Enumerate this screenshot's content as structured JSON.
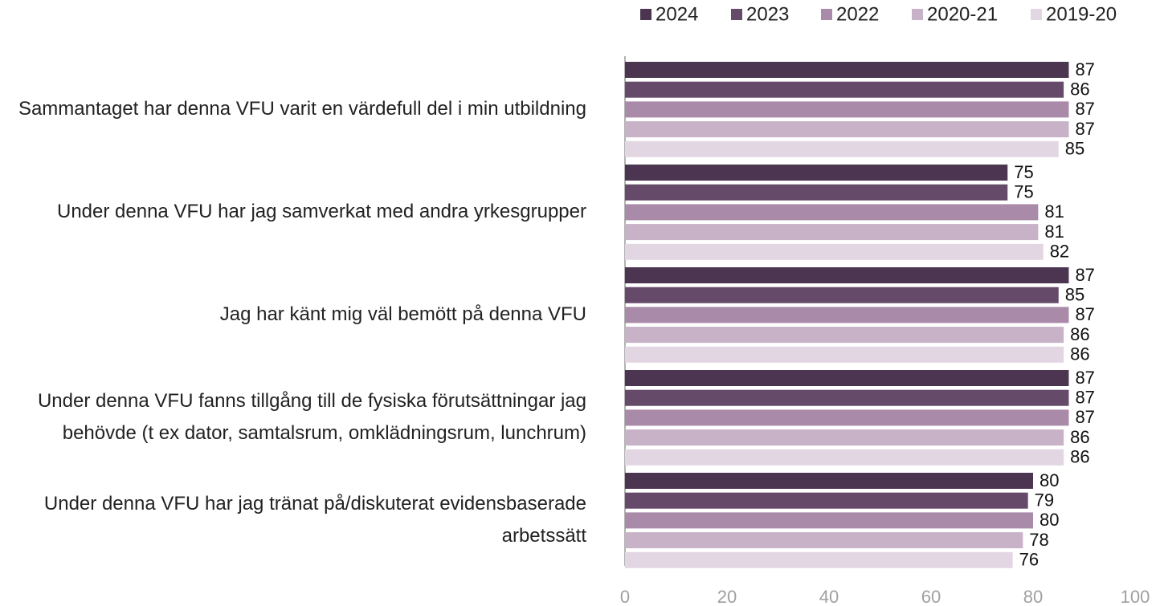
{
  "chart_data": {
    "type": "hbar",
    "categories": [
      "Sammantaget har denna VFU varit en värdefull del i min utbildning",
      "Under denna VFU har jag samverkat med andra yrkesgrupper",
      "Jag har känt mig väl bemött på denna VFU",
      "Under denna VFU fanns tillgång till de fysiska förutsättningar jag behövde (t ex dator, samtalsrum, omklädningsrum, lunchrum)",
      "Under denna VFU har jag tränat på/diskuterat evidensbaserade arbetssätt"
    ],
    "series": [
      {
        "name": "2024",
        "color": "#4b3550",
        "values": [
          87,
          75,
          87,
          87,
          80
        ]
      },
      {
        "name": "2023",
        "color": "#654a6a",
        "values": [
          86,
          75,
          85,
          87,
          79
        ]
      },
      {
        "name": "2022",
        "color": "#a98aa8",
        "values": [
          87,
          81,
          87,
          87,
          80
        ]
      },
      {
        "name": "2020-21",
        "color": "#c7b2c8",
        "values": [
          87,
          81,
          86,
          86,
          78
        ]
      },
      {
        "name": "2019-20",
        "color": "#e3d6e3",
        "values": [
          85,
          82,
          86,
          86,
          76
        ]
      }
    ],
    "xlim": [
      0,
      100
    ],
    "xticks": [
      0,
      20,
      40,
      60,
      80,
      100
    ],
    "grid": false,
    "legend": "top"
  }
}
